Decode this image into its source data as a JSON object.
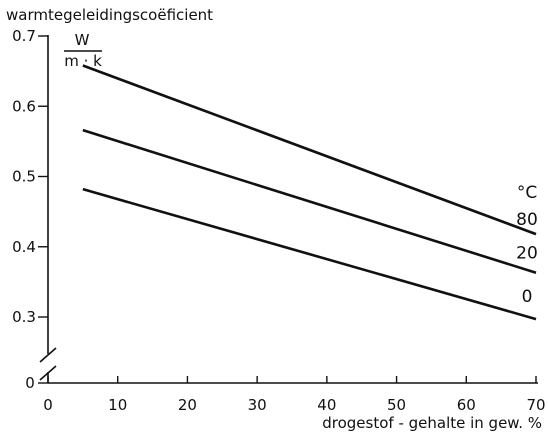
{
  "chart_data": {
    "type": "line",
    "title": "",
    "ylabel": "warmtegeleidingscoëficient",
    "yunit": {
      "numerator": "W",
      "denominator": "m · k"
    },
    "xlabel": "drogestof - gehalte in gew. %",
    "xlim": [
      0,
      70
    ],
    "ylim": [
      0.3,
      0.7
    ],
    "x_axis_break": true,
    "y_axis_break": true,
    "y_origin_label": "0",
    "xticks": [
      0,
      10,
      20,
      30,
      40,
      50,
      60,
      70
    ],
    "yticks": [
      0.3,
      0.4,
      0.5,
      0.6,
      0.7
    ],
    "xtick_labels": [
      "0",
      "10",
      "20",
      "30",
      "40",
      "50",
      "60",
      "70"
    ],
    "ytick_labels": [
      "0.3",
      "0.4",
      "0.5",
      "0.6",
      "0.7"
    ],
    "series_header": "°C",
    "grid": false,
    "series": [
      {
        "name": "80",
        "x": [
          5,
          70
        ],
        "y": [
          0.658,
          0.418
        ]
      },
      {
        "name": "20",
        "x": [
          5,
          70
        ],
        "y": [
          0.566,
          0.363
        ]
      },
      {
        "name": "0",
        "x": [
          5,
          70
        ],
        "y": [
          0.482,
          0.297
        ]
      }
    ]
  }
}
